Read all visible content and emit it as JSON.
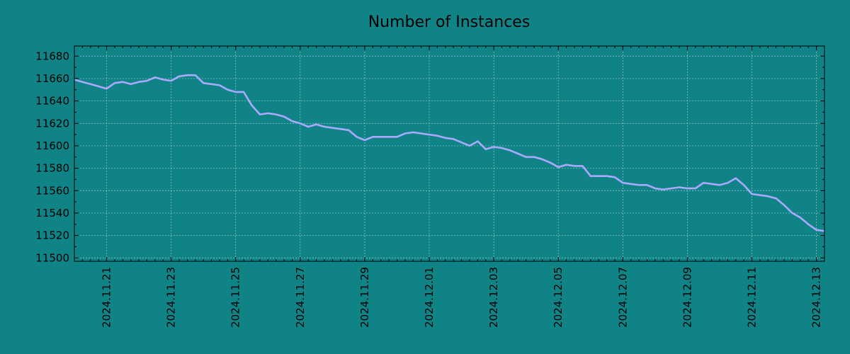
{
  "colors": {
    "background": "#108387",
    "line": "#a9a9ff",
    "grid": "#9cc7c8",
    "axis": "#000000"
  },
  "chart_data": {
    "type": "line",
    "title": "Number of Instances",
    "xlabel": "",
    "ylabel": "",
    "grid": true,
    "legend": "none",
    "xlim": [
      "2024-11-20",
      "2024-12-13T06:00"
    ],
    "ylim": [
      11497,
      11689
    ],
    "y_ticks": [
      11500,
      11520,
      11540,
      11560,
      11580,
      11600,
      11620,
      11640,
      11660,
      11680
    ],
    "x_ticks": [
      "2024.11.21",
      "2024.11.23",
      "2024.11.25",
      "2024.11.27",
      "2024.11.29",
      "2024.12.01",
      "2024.12.03",
      "2024.12.05",
      "2024.12.07",
      "2024.12.09",
      "2024.12.11",
      "2024.12.13"
    ],
    "series": [
      {
        "x": [
          "2024-11-20T00:00",
          "2024-11-20T06:00",
          "2024-11-20T12:00",
          "2024-11-20T18:00",
          "2024-11-21T00:00",
          "2024-11-21T06:00",
          "2024-11-21T12:00",
          "2024-11-21T18:00",
          "2024-11-22T00:00",
          "2024-11-22T06:00",
          "2024-11-22T12:00",
          "2024-11-22T18:00",
          "2024-11-23T00:00",
          "2024-11-23T06:00",
          "2024-11-23T12:00",
          "2024-11-23T18:00",
          "2024-11-24T00:00",
          "2024-11-24T06:00",
          "2024-11-24T12:00",
          "2024-11-24T18:00",
          "2024-11-25T00:00",
          "2024-11-25T06:00",
          "2024-11-25T12:00",
          "2024-11-25T18:00",
          "2024-11-26T00:00",
          "2024-11-26T06:00",
          "2024-11-26T12:00",
          "2024-11-26T18:00",
          "2024-11-27T00:00",
          "2024-11-27T06:00",
          "2024-11-27T12:00",
          "2024-11-27T18:00",
          "2024-11-28T00:00",
          "2024-11-28T06:00",
          "2024-11-28T12:00",
          "2024-11-28T18:00",
          "2024-11-29T00:00",
          "2024-11-29T06:00",
          "2024-11-29T12:00",
          "2024-11-29T18:00",
          "2024-11-30T00:00",
          "2024-11-30T06:00",
          "2024-11-30T12:00",
          "2024-11-30T18:00",
          "2024-12-01T00:00",
          "2024-12-01T06:00",
          "2024-12-01T12:00",
          "2024-12-01T18:00",
          "2024-12-02T00:00",
          "2024-12-02T06:00",
          "2024-12-02T12:00",
          "2024-12-02T18:00",
          "2024-12-03T00:00",
          "2024-12-03T06:00",
          "2024-12-03T12:00",
          "2024-12-03T18:00",
          "2024-12-04T00:00",
          "2024-12-04T06:00",
          "2024-12-04T12:00",
          "2024-12-04T18:00",
          "2024-12-05T00:00",
          "2024-12-05T06:00",
          "2024-12-05T12:00",
          "2024-12-05T18:00",
          "2024-12-06T00:00",
          "2024-12-06T06:00",
          "2024-12-06T12:00",
          "2024-12-06T18:00",
          "2024-12-07T00:00",
          "2024-12-07T06:00",
          "2024-12-07T12:00",
          "2024-12-07T18:00",
          "2024-12-08T00:00",
          "2024-12-08T06:00",
          "2024-12-08T12:00",
          "2024-12-08T18:00",
          "2024-12-09T00:00",
          "2024-12-09T06:00",
          "2024-12-09T12:00",
          "2024-12-09T18:00",
          "2024-12-10T00:00",
          "2024-12-10T06:00",
          "2024-12-10T12:00",
          "2024-12-10T18:00",
          "2024-12-11T00:00",
          "2024-12-11T06:00",
          "2024-12-11T12:00",
          "2024-12-11T18:00",
          "2024-12-12T00:00",
          "2024-12-12T06:00",
          "2024-12-12T12:00",
          "2024-12-12T18:00",
          "2024-12-13T00:00",
          "2024-12-13T06:00"
        ],
        "values": [
          11659,
          11657,
          11655,
          11653,
          11651,
          11656,
          11657,
          11655,
          11657,
          11658,
          11661,
          11659,
          11658,
          11662,
          11663,
          11663,
          11656,
          11655,
          11654,
          11650,
          11648,
          11648,
          11636,
          11628,
          11629,
          11628,
          11626,
          11622,
          11620,
          11617,
          11619,
          11617,
          11616,
          11615,
          11614,
          11608,
          11605,
          11608,
          11608,
          11608,
          11608,
          11611,
          11612,
          11611,
          11610,
          11609,
          11607,
          11606,
          11603,
          11600,
          11604,
          11597,
          11599,
          11598,
          11596,
          11593,
          11590,
          11590,
          11588,
          11585,
          11581,
          11583,
          11582,
          11582,
          11573,
          11573,
          11573,
          11572,
          11567,
          11566,
          11565,
          11565,
          11562,
          11561,
          11562,
          11563,
          11562,
          11562,
          11567,
          11566,
          11565,
          11567,
          11571,
          11565,
          11557,
          11556,
          11555,
          11553,
          11547,
          11540,
          11536,
          11530,
          11525,
          11524
        ]
      }
    ]
  }
}
